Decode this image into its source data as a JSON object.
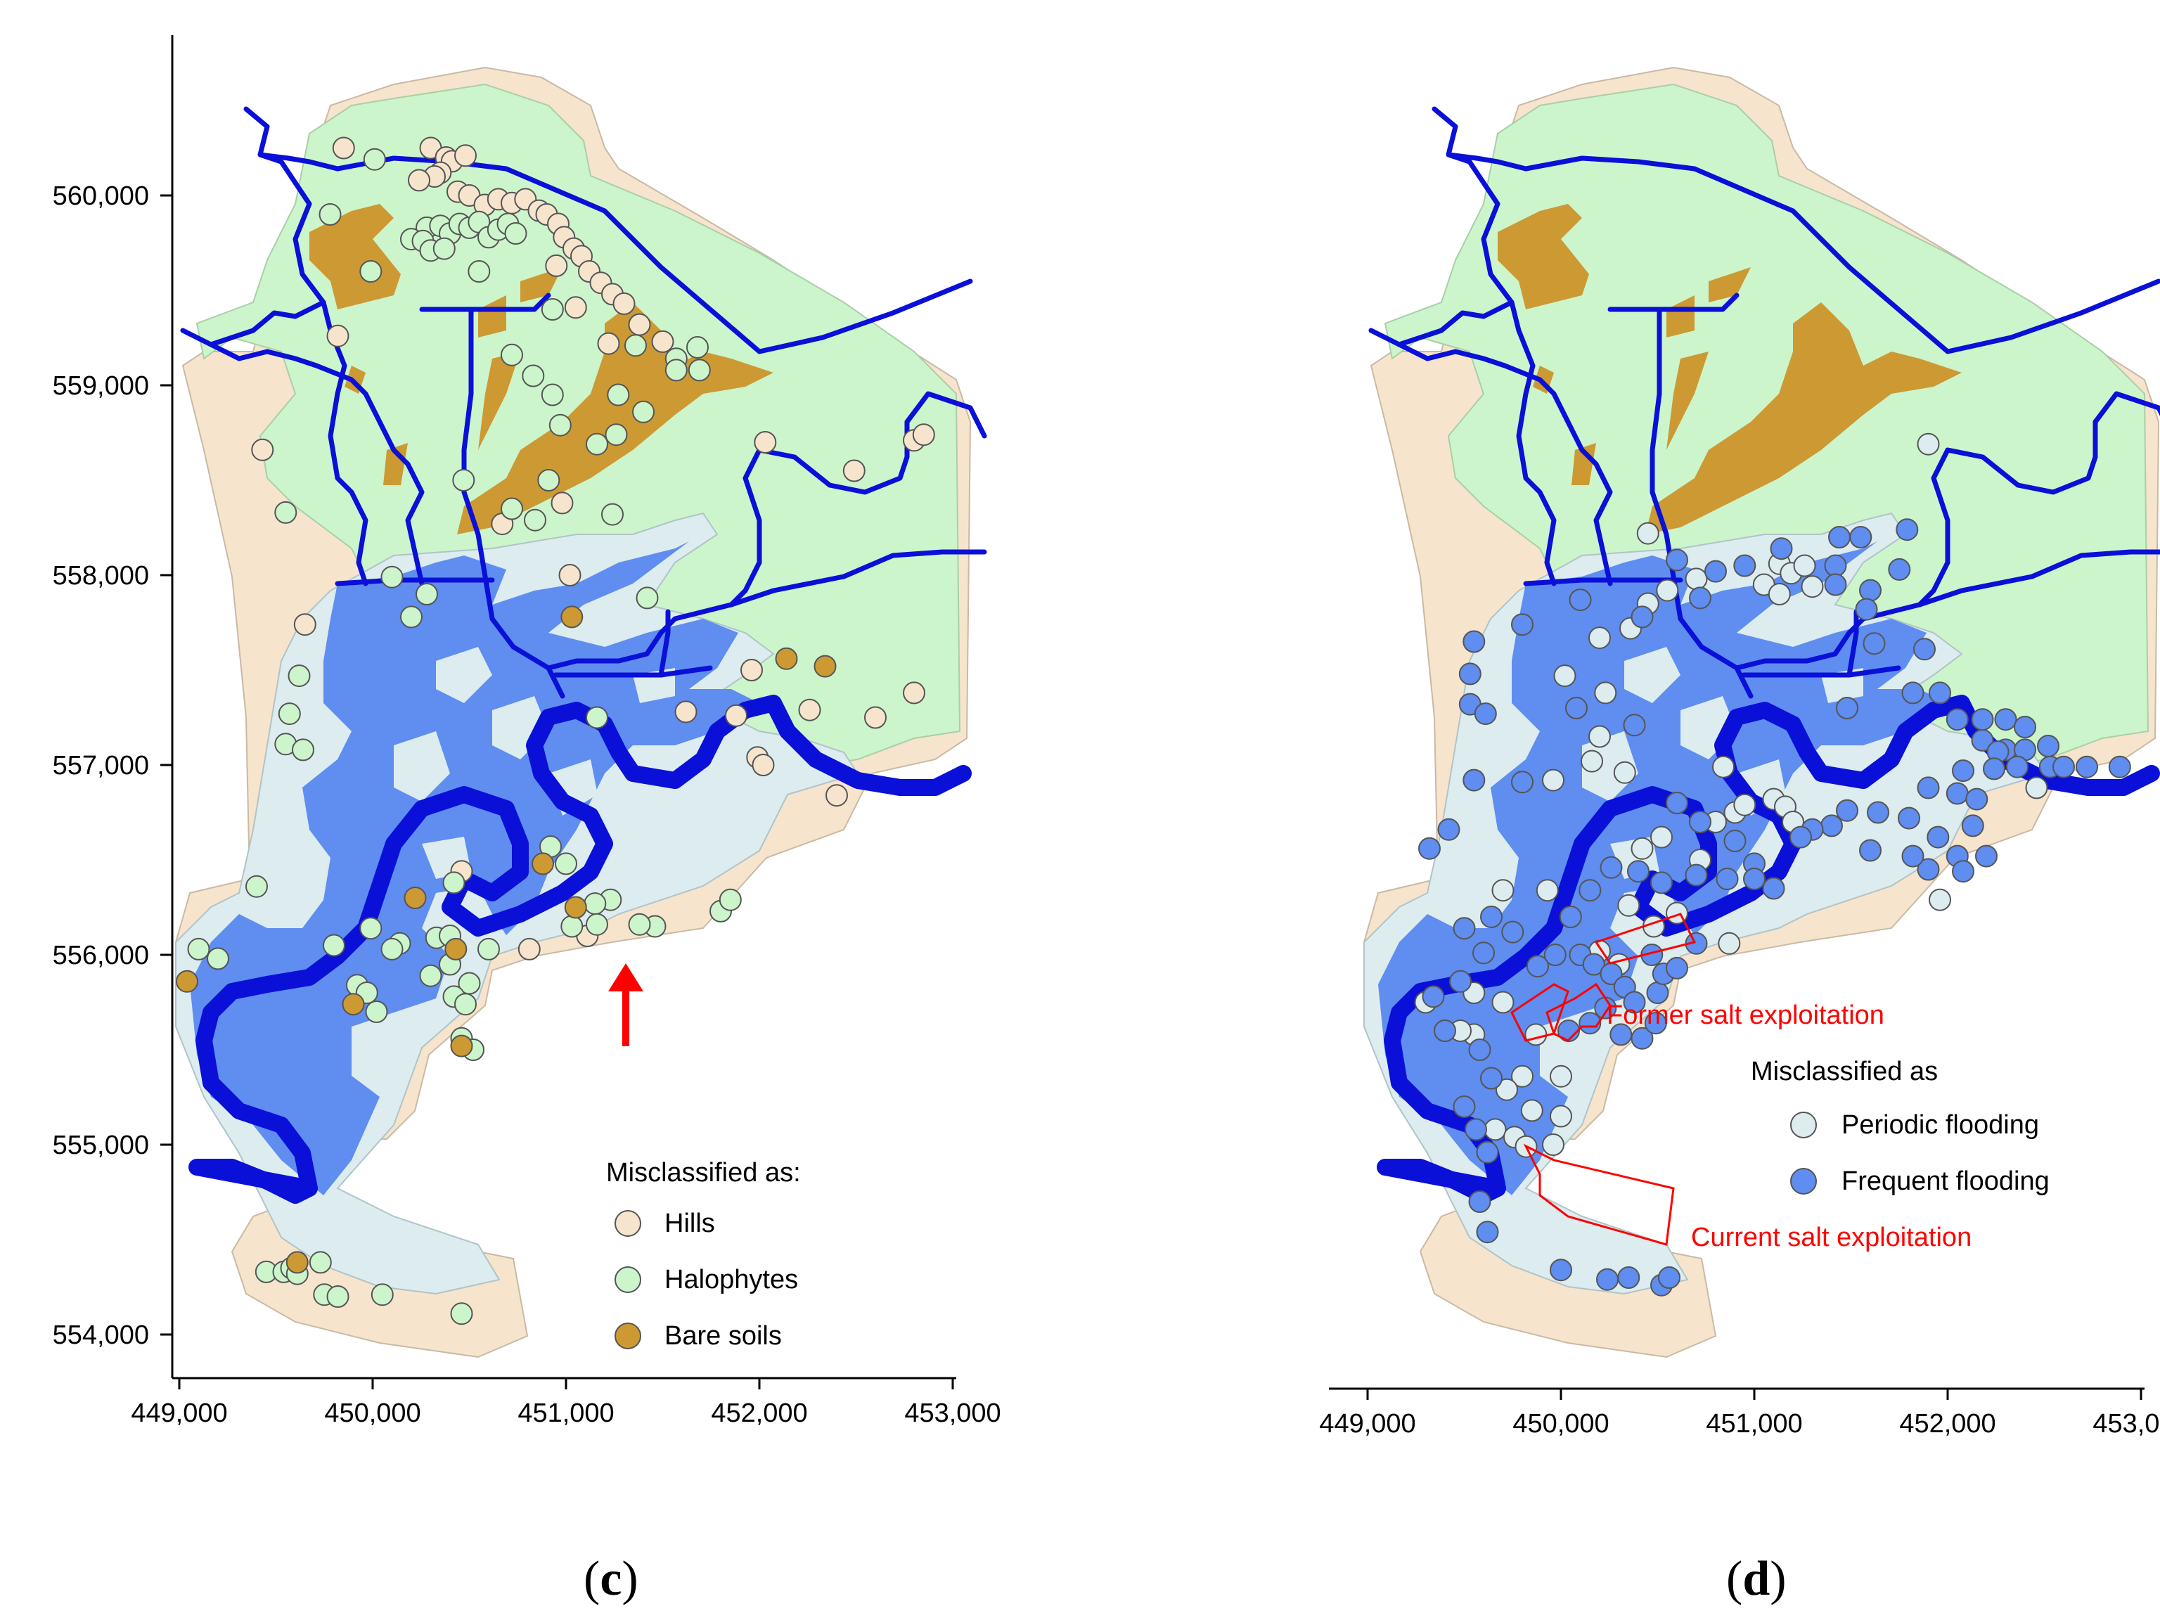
{
  "colors": {
    "hills": "#f7e4cd",
    "halophytes": "#ccf5cc",
    "bare_soils": "#cc9933",
    "periodic_flooding": "#dcecef",
    "frequent_flooding": "#5f8df0",
    "river": "#0a10d8",
    "annotation": "#ff0000"
  },
  "x_axis": {
    "ticks": [
      "449,000",
      "450,000",
      "451,000",
      "452,000",
      "453,000"
    ],
    "values": [
      449000,
      450000,
      451000,
      452000,
      453000
    ]
  },
  "y_axis": {
    "ticks": [
      "560,000",
      "559,000",
      "558,000",
      "557,000",
      "556,000",
      "555,000",
      "554,000"
    ],
    "values": [
      560000,
      559000,
      558000,
      557000,
      556000,
      555000,
      554000
    ]
  },
  "panel_c": {
    "label_open": "(",
    "label_letter": "c",
    "label_close": ")",
    "legend_title": "Misclassified as:",
    "legend_items": [
      {
        "label": "Hills",
        "color": "#f7e4cd"
      },
      {
        "label": "Halophytes",
        "color": "#ccf5cc"
      },
      {
        "label": "Bare soils",
        "color": "#cc9933"
      }
    ],
    "arrow_icon": "up-arrow-icon",
    "points": {
      "hills": [
        [
          449850,
          560250
        ],
        [
          450300,
          560250
        ],
        [
          450380,
          560200
        ],
        [
          450410,
          560180
        ],
        [
          450480,
          560210
        ],
        [
          450350,
          560120
        ],
        [
          450320,
          560100
        ],
        [
          450240,
          560080
        ],
        [
          450440,
          560020
        ],
        [
          450500,
          560000
        ],
        [
          450580,
          559950
        ],
        [
          450650,
          559980
        ],
        [
          450720,
          559960
        ],
        [
          450790,
          559980
        ],
        [
          450860,
          559920
        ],
        [
          450900,
          559900
        ],
        [
          450960,
          559850
        ],
        [
          450990,
          559780
        ],
        [
          451040,
          559720
        ],
        [
          451080,
          559680
        ],
        [
          450950,
          559630
        ],
        [
          451120,
          559600
        ],
        [
          451180,
          559540
        ],
        [
          451240,
          559480
        ],
        [
          451300,
          559430
        ],
        [
          451050,
          559410
        ],
        [
          451380,
          559320
        ],
        [
          451500,
          559230
        ],
        [
          451220,
          559220
        ],
        [
          449820,
          559260
        ],
        [
          449430,
          558660
        ],
        [
          452030,
          558700
        ],
        [
          452490,
          558550
        ],
        [
          452800,
          558710
        ],
        [
          452850,
          558740
        ],
        [
          450980,
          558380
        ],
        [
          450670,
          558270
        ],
        [
          451020,
          558000
        ],
        [
          449650,
          557740
        ],
        [
          451960,
          557500
        ],
        [
          452260,
          557290
        ],
        [
          452600,
          557250
        ],
        [
          452800,
          557380
        ],
        [
          451990,
          557040
        ],
        [
          452020,
          557000
        ],
        [
          452400,
          556840
        ],
        [
          451620,
          557280
        ],
        [
          451880,
          557260
        ],
        [
          451110,
          556100
        ],
        [
          450810,
          556030
        ],
        [
          450460,
          556440
        ]
      ],
      "halophytes": [
        [
          450010,
          560190
        ],
        [
          449780,
          559900
        ],
        [
          450280,
          559830
        ],
        [
          450350,
          559840
        ],
        [
          450400,
          559800
        ],
        [
          450450,
          559850
        ],
        [
          450500,
          559830
        ],
        [
          450550,
          559860
        ],
        [
          450600,
          559780
        ],
        [
          450650,
          559820
        ],
        [
          450700,
          559850
        ],
        [
          450740,
          559800
        ],
        [
          450200,
          559770
        ],
        [
          450260,
          559760
        ],
        [
          450300,
          559710
        ],
        [
          450370,
          559720
        ],
        [
          449990,
          559600
        ],
        [
          450550,
          559600
        ],
        [
          450930,
          559400
        ],
        [
          451360,
          559210
        ],
        [
          450720,
          559160
        ],
        [
          451570,
          559140
        ],
        [
          451570,
          559080
        ],
        [
          451690,
          559080
        ],
        [
          450830,
          559050
        ],
        [
          451680,
          559200
        ],
        [
          450930,
          558950
        ],
        [
          451270,
          558950
        ],
        [
          451400,
          558860
        ],
        [
          450970,
          558790
        ],
        [
          451260,
          558740
        ],
        [
          451160,
          558690
        ],
        [
          450910,
          558500
        ],
        [
          450470,
          558500
        ],
        [
          450720,
          558350
        ],
        [
          449550,
          558330
        ],
        [
          451240,
          558320
        ],
        [
          450840,
          558290
        ],
        [
          450100,
          557990
        ],
        [
          451420,
          557880
        ],
        [
          450280,
          557900
        ],
        [
          450200,
          557780
        ],
        [
          449620,
          557470
        ],
        [
          449570,
          557270
        ],
        [
          449550,
          557110
        ],
        [
          449640,
          557080
        ],
        [
          451160,
          557250
        ],
        [
          450920,
          556570
        ],
        [
          451000,
          556480
        ],
        [
          450420,
          556380
        ],
        [
          449400,
          556360
        ],
        [
          451230,
          556290
        ],
        [
          451460,
          556150
        ],
        [
          451380,
          556160
        ],
        [
          451150,
          556270
        ],
        [
          451160,
          556160
        ],
        [
          451030,
          556150
        ],
        [
          451800,
          556230
        ],
        [
          451850,
          556290
        ],
        [
          449990,
          556140
        ],
        [
          449800,
          556050
        ],
        [
          450330,
          556090
        ],
        [
          450140,
          556060
        ],
        [
          450400,
          556100
        ],
        [
          450100,
          556030
        ],
        [
          449100,
          556030
        ],
        [
          449200,
          555980
        ],
        [
          450600,
          556030
        ],
        [
          450400,
          555950
        ],
        [
          450300,
          555890
        ],
        [
          449920,
          555840
        ],
        [
          450500,
          555850
        ],
        [
          450420,
          555780
        ],
        [
          450480,
          555740
        ],
        [
          449970,
          555800
        ],
        [
          450020,
          555700
        ],
        [
          450460,
          555560
        ],
        [
          450520,
          555500
        ],
        [
          449450,
          554330
        ],
        [
          449540,
          554330
        ],
        [
          449580,
          554350
        ],
        [
          449610,
          554320
        ],
        [
          449730,
          554380
        ],
        [
          449750,
          554210
        ],
        [
          449820,
          554200
        ],
        [
          450050,
          554210
        ],
        [
          450460,
          554110
        ]
      ],
      "bare_soils": [
        [
          451030,
          557780
        ],
        [
          452140,
          557560
        ],
        [
          452340,
          557520
        ],
        [
          450880,
          556480
        ],
        [
          451050,
          556250
        ],
        [
          450220,
          556300
        ],
        [
          450430,
          556030
        ],
        [
          449900,
          555740
        ],
        [
          450460,
          555520
        ],
        [
          449040,
          555860
        ],
        [
          449610,
          554380
        ]
      ]
    }
  },
  "panel_d": {
    "label_open": "(",
    "label_letter": "d",
    "label_close": ")",
    "legend_title": "Misclassified as",
    "legend_items": [
      {
        "label": "Periodic flooding",
        "color": "#dcecef"
      },
      {
        "label": "Frequent flooding",
        "color": "#5f8df0"
      }
    ],
    "annotations": {
      "former": "Former salt exploitation",
      "current": "Current salt exploitation"
    },
    "points": {
      "periodic": [
        [
          451900,
          558690
        ],
        [
          450450,
          558220
        ],
        [
          451130,
          558060
        ],
        [
          451190,
          558010
        ],
        [
          451260,
          558050
        ],
        [
          451300,
          557940
        ],
        [
          451050,
          557950
        ],
        [
          450700,
          557980
        ],
        [
          450550,
          557920
        ],
        [
          451130,
          557900
        ],
        [
          450450,
          557850
        ],
        [
          450360,
          557720
        ],
        [
          450200,
          557670
        ],
        [
          450020,
          557470
        ],
        [
          450230,
          557380
        ],
        [
          450160,
          557020
        ],
        [
          449960,
          556920
        ],
        [
          450330,
          556960
        ],
        [
          450200,
          557150
        ],
        [
          450840,
          556990
        ],
        [
          450520,
          556620
        ],
        [
          450720,
          556500
        ],
        [
          449930,
          556340
        ],
        [
          449700,
          556340
        ],
        [
          450420,
          556560
        ],
        [
          450800,
          556700
        ],
        [
          450900,
          556750
        ],
        [
          450950,
          556790
        ],
        [
          451100,
          556820
        ],
        [
          451160,
          556780
        ],
        [
          451200,
          556700
        ],
        [
          451960,
          556290
        ],
        [
          452460,
          556880
        ],
        [
          450350,
          556260
        ],
        [
          450480,
          556150
        ],
        [
          450600,
          556220
        ],
        [
          450870,
          556060
        ],
        [
          450200,
          556020
        ],
        [
          450300,
          555950
        ],
        [
          449550,
          555800
        ],
        [
          449700,
          555750
        ],
        [
          449870,
          555580
        ],
        [
          449550,
          555580
        ],
        [
          449800,
          555360
        ],
        [
          450000,
          555360
        ],
        [
          449720,
          555290
        ],
        [
          449850,
          555180
        ],
        [
          450000,
          555150
        ],
        [
          449660,
          555080
        ],
        [
          449760,
          555040
        ],
        [
          449820,
          554990
        ],
        [
          449960,
          555000
        ],
        [
          449480,
          555600
        ],
        [
          449300,
          555750
        ]
      ],
      "frequent": [
        [
          451790,
          558240
        ],
        [
          451140,
          558140
        ],
        [
          451440,
          558200
        ],
        [
          451550,
          558200
        ],
        [
          451420,
          558050
        ],
        [
          451750,
          558030
        ],
        [
          451420,
          557950
        ],
        [
          451600,
          557920
        ],
        [
          451580,
          557820
        ],
        [
          450600,
          558080
        ],
        [
          450800,
          558020
        ],
        [
          450950,
          558050
        ],
        [
          450720,
          557880
        ],
        [
          450420,
          557780
        ],
        [
          450100,
          557870
        ],
        [
          449800,
          557740
        ],
        [
          449550,
          557650
        ],
        [
          449530,
          557480
        ],
        [
          449530,
          557320
        ],
        [
          449610,
          557270
        ],
        [
          450080,
          557300
        ],
        [
          450380,
          557210
        ],
        [
          451620,
          557640
        ],
        [
          451880,
          557610
        ],
        [
          451480,
          557300
        ],
        [
          451820,
          557380
        ],
        [
          451960,
          557380
        ],
        [
          452050,
          557240
        ],
        [
          452180,
          557130
        ],
        [
          452300,
          557080
        ],
        [
          452400,
          557080
        ],
        [
          452260,
          557070
        ],
        [
          452080,
          556970
        ],
        [
          452240,
          556980
        ],
        [
          452360,
          556990
        ],
        [
          452530,
          556990
        ],
        [
          452720,
          556990
        ],
        [
          452890,
          556990
        ],
        [
          452180,
          557240
        ],
        [
          452300,
          557240
        ],
        [
          452400,
          557200
        ],
        [
          452520,
          557100
        ],
        [
          452600,
          556990
        ],
        [
          451900,
          556880
        ],
        [
          452050,
          556850
        ],
        [
          452150,
          556820
        ],
        [
          451640,
          556750
        ],
        [
          451800,
          556720
        ],
        [
          451950,
          556620
        ],
        [
          452050,
          556520
        ],
        [
          452200,
          556520
        ],
        [
          452130,
          556680
        ],
        [
          451900,
          556450
        ],
        [
          452080,
          556440
        ],
        [
          451600,
          556550
        ],
        [
          451820,
          556520
        ],
        [
          451400,
          556680
        ],
        [
          451480,
          556760
        ],
        [
          451300,
          556660
        ],
        [
          451240,
          556620
        ],
        [
          451000,
          556480
        ],
        [
          450860,
          556400
        ],
        [
          450700,
          556420
        ],
        [
          450520,
          556380
        ],
        [
          450400,
          556440
        ],
        [
          450260,
          556460
        ],
        [
          450150,
          556340
        ],
        [
          450050,
          556200
        ],
        [
          450100,
          556000
        ],
        [
          450170,
          555950
        ],
        [
          450260,
          555900
        ],
        [
          450330,
          555830
        ],
        [
          450380,
          555750
        ],
        [
          450230,
          555720
        ],
        [
          450150,
          555640
        ],
        [
          450040,
          555600
        ],
        [
          450310,
          555580
        ],
        [
          450420,
          555560
        ],
        [
          450490,
          555640
        ],
        [
          450500,
          555800
        ],
        [
          450530,
          555900
        ],
        [
          450470,
          556000
        ],
        [
          450600,
          555930
        ],
        [
          450700,
          556060
        ],
        [
          449970,
          556000
        ],
        [
          449880,
          555940
        ],
        [
          449600,
          556010
        ],
        [
          449500,
          556140
        ],
        [
          449640,
          556200
        ],
        [
          449750,
          556120
        ],
        [
          449480,
          555860
        ],
        [
          449340,
          555780
        ],
        [
          449400,
          555600
        ],
        [
          449580,
          555500
        ],
        [
          449640,
          555350
        ],
        [
          449500,
          555200
        ],
        [
          449560,
          555080
        ],
        [
          449620,
          554960
        ],
        [
          449580,
          554700
        ],
        [
          449620,
          554540
        ],
        [
          450000,
          554340
        ],
        [
          450240,
          554290
        ],
        [
          450350,
          554300
        ],
        [
          450520,
          554260
        ],
        [
          450560,
          554300
        ],
        [
          449320,
          556560
        ],
        [
          449420,
          556660
        ],
        [
          449550,
          556920
        ],
        [
          449800,
          556910
        ],
        [
          450600,
          556800
        ],
        [
          450720,
          556700
        ],
        [
          450900,
          556600
        ],
        [
          451000,
          556400
        ],
        [
          451100,
          556350
        ]
      ]
    }
  }
}
